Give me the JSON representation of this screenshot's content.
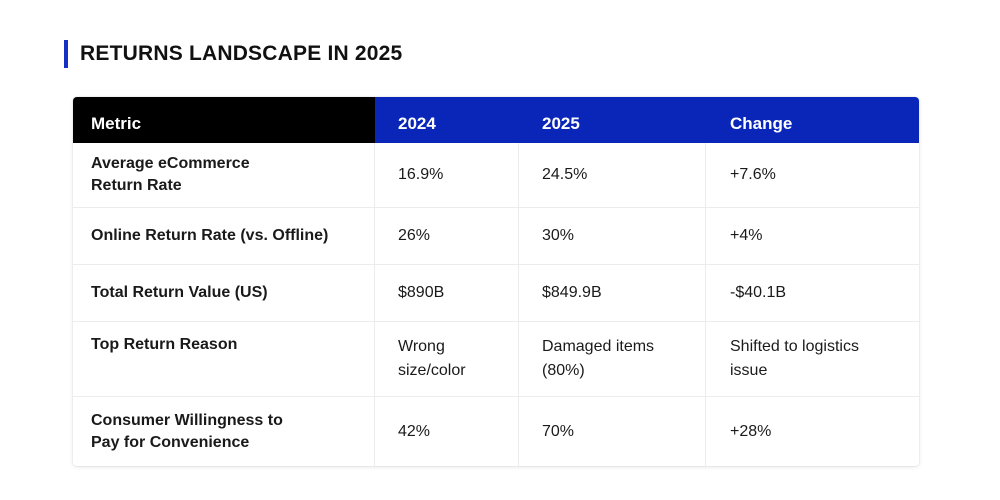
{
  "title": "RETURNS LANDSCAPE IN 2025",
  "colors": {
    "accent": "#1531c4",
    "header_dark": "#000000",
    "header_blue": "#0a26b8"
  },
  "table": {
    "headers": [
      "Metric",
      "2024",
      "2025",
      "Change"
    ],
    "rows": [
      [
        "Average eCommerce Return Rate",
        "16.9%",
        "24.5%",
        "+7.6%"
      ],
      [
        "Online Return Rate (vs. Offline)",
        "26%",
        "30%",
        "+4%"
      ],
      [
        "Total Return Value (US)",
        "$890B",
        "$849.9B",
        "-$40.1B"
      ],
      [
        "Top Return Reason",
        "Wrong size/color",
        "Damaged items (80%)",
        "Shifted to logistics issue"
      ],
      [
        "Consumer Willingness to Pay for Convenience",
        "42%",
        "70%",
        "+28%"
      ]
    ]
  }
}
